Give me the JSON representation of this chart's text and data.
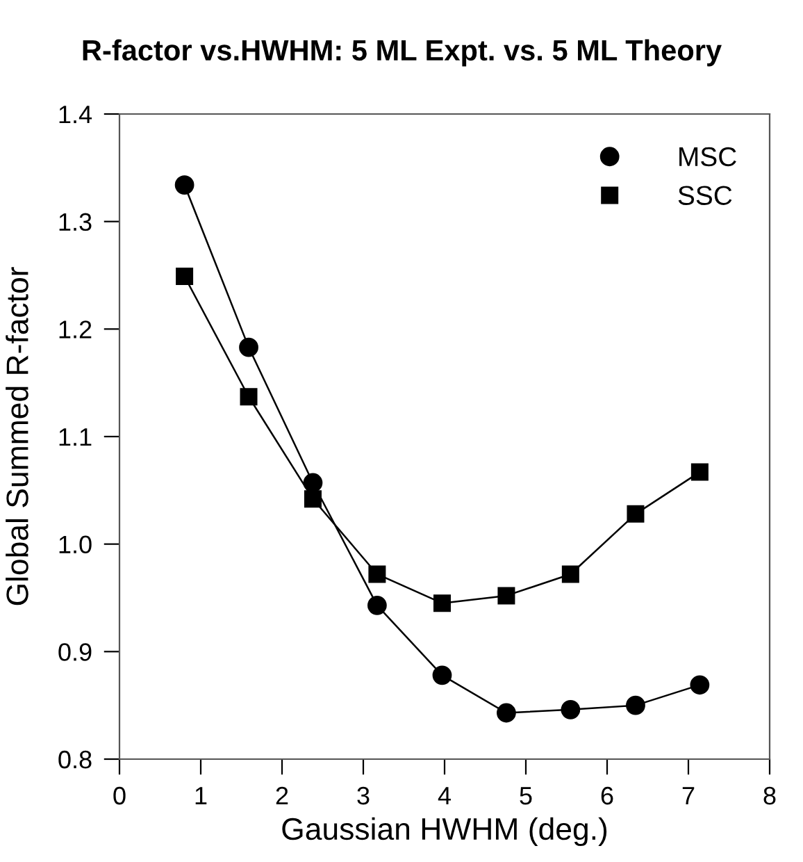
{
  "chart_data": {
    "type": "line",
    "title": "R-factor vs.HWHM: 5 ML Expt. vs. 5 ML Theory",
    "xlabel": "Gaussian HWHM (deg.)",
    "ylabel": "Global Summed R-factor",
    "x": [
      0.8,
      1.59,
      2.38,
      3.17,
      3.97,
      4.76,
      5.55,
      6.35,
      7.14
    ],
    "series": [
      {
        "name": "MSC",
        "color": "#000000",
        "marker": "circle",
        "values": [
          1.334,
          1.183,
          1.057,
          0.943,
          0.878,
          0.843,
          0.846,
          0.85,
          0.869
        ]
      },
      {
        "name": "SSC",
        "color": "#000000",
        "marker": "square",
        "values": [
          1.249,
          1.137,
          1.042,
          0.972,
          0.945,
          0.952,
          0.972,
          1.028,
          1.067
        ]
      }
    ],
    "xlim": [
      0,
      8
    ],
    "xticks": [
      0,
      1,
      2,
      3,
      4,
      5,
      6,
      7,
      8
    ],
    "ylim": [
      0.8,
      1.4
    ],
    "yticks": [
      0.8,
      0.9,
      {
        "value": 1.0,
        "label": "1.0"
      },
      1.1,
      1.2,
      1.3,
      1.4
    ],
    "grid": false,
    "legend": "top right",
    "line_style": "solid"
  }
}
